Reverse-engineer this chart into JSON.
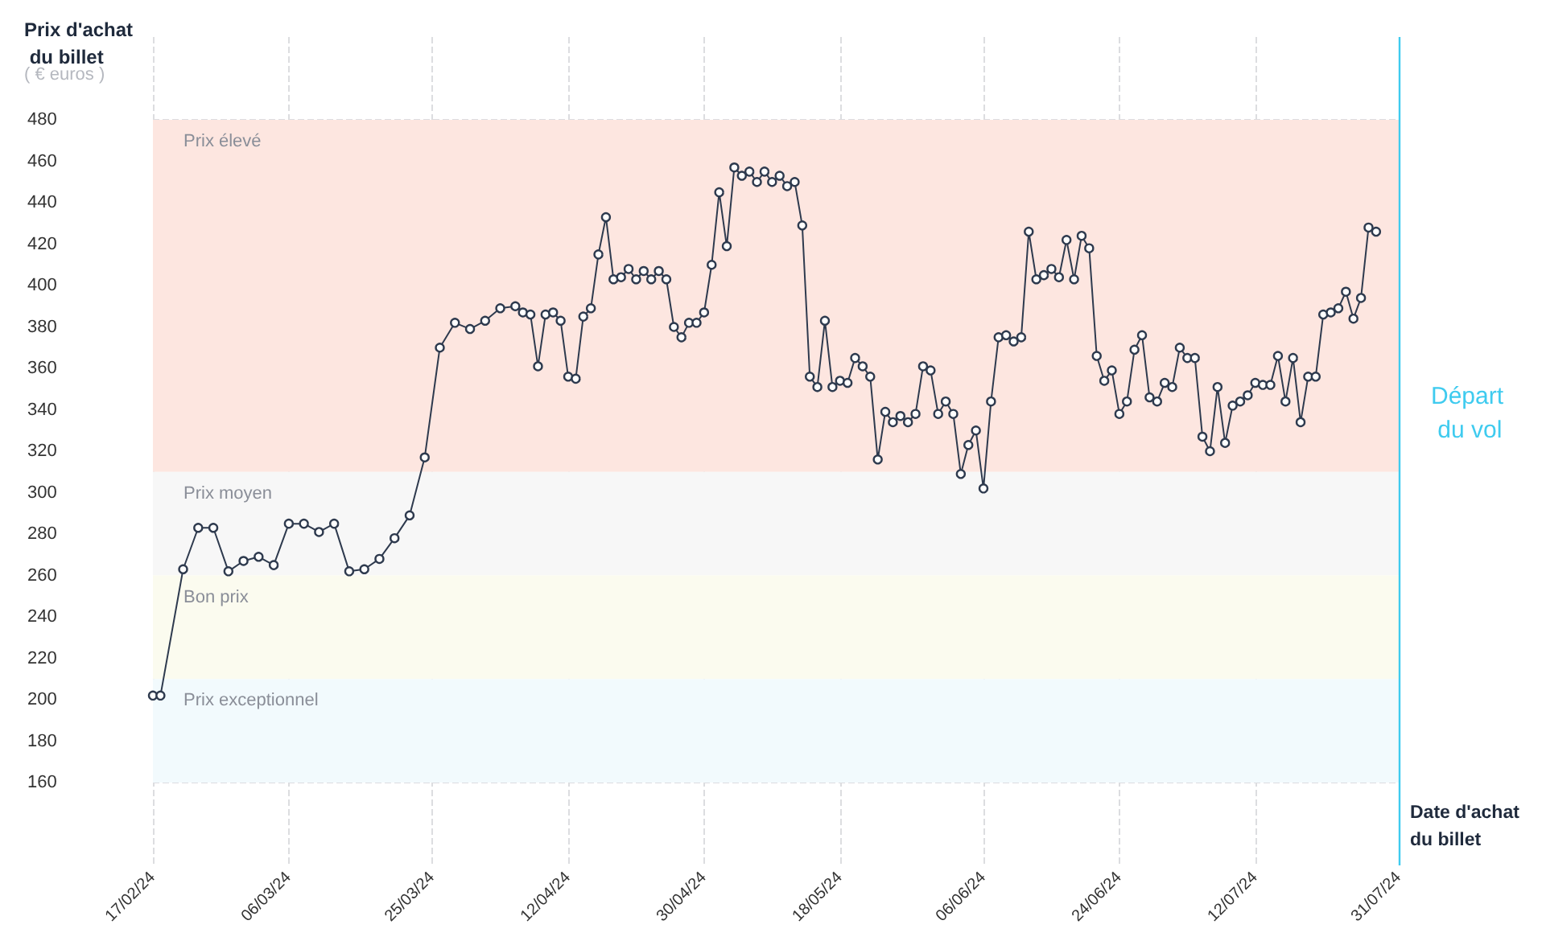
{
  "chart_data": {
    "type": "line",
    "ylabel": "Prix d'achat du billet",
    "xlabel": "Date d'achat du billet",
    "annotations": [
      "( € euros )"
    ],
    "x": [
      "2024-02-17",
      "2024-02-18",
      "2024-02-21",
      "2024-02-23",
      "2024-02-25",
      "2024-02-27",
      "2024-02-29",
      "2024-03-02",
      "2024-03-04",
      "2024-03-06",
      "2024-03-08",
      "2024-03-10",
      "2024-03-12",
      "2024-03-14",
      "2024-03-16",
      "2024-03-18",
      "2024-03-20",
      "2024-03-22",
      "2024-03-24",
      "2024-03-26",
      "2024-03-28",
      "2024-03-30",
      "2024-04-01",
      "2024-04-03",
      "2024-04-05",
      "2024-04-06",
      "2024-04-07",
      "2024-04-08",
      "2024-04-09",
      "2024-04-10",
      "2024-04-11",
      "2024-04-12",
      "2024-04-13",
      "2024-04-14",
      "2024-04-15",
      "2024-04-16",
      "2024-04-17",
      "2024-04-18",
      "2024-04-19",
      "2024-04-20",
      "2024-04-21",
      "2024-04-22",
      "2024-04-23",
      "2024-04-24",
      "2024-04-25",
      "2024-04-26",
      "2024-04-27",
      "2024-04-28",
      "2024-04-29",
      "2024-04-30",
      "2024-05-01",
      "2024-05-02",
      "2024-05-03",
      "2024-05-04",
      "2024-05-05",
      "2024-05-06",
      "2024-05-07",
      "2024-05-08",
      "2024-05-09",
      "2024-05-10",
      "2024-05-11",
      "2024-05-12",
      "2024-05-13",
      "2024-05-14",
      "2024-05-15",
      "2024-05-16",
      "2024-05-17",
      "2024-05-18",
      "2024-05-19",
      "2024-05-20",
      "2024-05-21",
      "2024-05-22",
      "2024-05-23",
      "2024-05-24",
      "2024-05-25",
      "2024-05-26",
      "2024-05-27",
      "2024-05-28",
      "2024-05-29",
      "2024-05-30",
      "2024-05-31",
      "2024-06-01",
      "2024-06-02",
      "2024-06-03",
      "2024-06-04",
      "2024-06-05",
      "2024-06-06",
      "2024-06-07",
      "2024-06-08",
      "2024-06-09",
      "2024-06-10",
      "2024-06-11",
      "2024-06-12",
      "2024-06-13",
      "2024-06-14",
      "2024-06-15",
      "2024-06-16",
      "2024-06-17",
      "2024-06-18",
      "2024-06-19",
      "2024-06-20",
      "2024-06-21",
      "2024-06-22",
      "2024-06-23",
      "2024-06-24",
      "2024-06-25",
      "2024-06-26",
      "2024-06-27",
      "2024-06-28",
      "2024-06-29",
      "2024-06-30",
      "2024-07-01",
      "2024-07-02",
      "2024-07-03",
      "2024-07-04",
      "2024-07-05",
      "2024-07-06",
      "2024-07-07",
      "2024-07-08",
      "2024-07-09",
      "2024-07-10",
      "2024-07-11",
      "2024-07-12",
      "2024-07-13",
      "2024-07-14",
      "2024-07-15",
      "2024-07-16",
      "2024-07-17",
      "2024-07-18",
      "2024-07-19",
      "2024-07-20",
      "2024-07-21",
      "2024-07-22",
      "2024-07-23",
      "2024-07-24",
      "2024-07-25",
      "2024-07-26",
      "2024-07-27",
      "2024-07-28"
    ],
    "series": [
      {
        "color": "#2e3a4e",
        "values": [
          202,
          202,
          263,
          283,
          283,
          262,
          267,
          269,
          265,
          285,
          285,
          281,
          285,
          262,
          263,
          268,
          278,
          289,
          317,
          370,
          382,
          379,
          383,
          389,
          390,
          387,
          386,
          361,
          386,
          387,
          383,
          356,
          355,
          385,
          389,
          415,
          433,
          403,
          404,
          408,
          403,
          407,
          403,
          407,
          403,
          380,
          375,
          382,
          382,
          387,
          410,
          445,
          419,
          457,
          453,
          455,
          450,
          455,
          450,
          453,
          448,
          450,
          429,
          356,
          351,
          383,
          351,
          354,
          353,
          365,
          361,
          356,
          316,
          339,
          334,
          337,
          334,
          338,
          361,
          359,
          338,
          344,
          338,
          309,
          323,
          330,
          302,
          344,
          375,
          376,
          373,
          375,
          426,
          403,
          405,
          408,
          404,
          422,
          403,
          424,
          418,
          366,
          354,
          359,
          338,
          344,
          369,
          376,
          346,
          344,
          353,
          351,
          370,
          365,
          365,
          327,
          320,
          351,
          324,
          342,
          344,
          347,
          353,
          352,
          352,
          366,
          344,
          365,
          334,
          356,
          356,
          386,
          387,
          389,
          397,
          384,
          394,
          428,
          426
        ]
      }
    ],
    "xlim": [
      "2024-02-17",
      "2024-07-31"
    ],
    "xticks": [
      {
        "value": "2024-02-17",
        "label": "17/02/24"
      },
      {
        "value": "2024-03-06",
        "label": "06/03/24"
      },
      {
        "value": "2024-03-25",
        "label": "25/03/24"
      },
      {
        "value": "2024-04-12",
        "label": "12/04/24"
      },
      {
        "value": "2024-04-30",
        "label": "30/04/24"
      },
      {
        "value": "2024-05-18",
        "label": "18/05/24"
      },
      {
        "value": "2024-06-06",
        "label": "06/06/24"
      },
      {
        "value": "2024-06-24",
        "label": "24/06/24"
      },
      {
        "value": "2024-07-12",
        "label": "12/07/24"
      },
      {
        "value": "2024-07-31",
        "label": "31/07/24"
      }
    ],
    "ylim": [
      120,
      520
    ],
    "yticks": [
      160,
      180,
      200,
      220,
      240,
      260,
      280,
      300,
      320,
      340,
      360,
      380,
      400,
      420,
      440,
      460,
      480
    ],
    "bands": [
      {
        "axis": "y",
        "from": 310,
        "to": 480,
        "label": "Prix élevé",
        "color": "#fde6e0"
      },
      {
        "axis": "y",
        "from": 260,
        "to": 310,
        "label": "Prix moyen",
        "color": "#f7f7f7"
      },
      {
        "axis": "y",
        "from": 210,
        "to": 260,
        "label": "Bon prix",
        "color": "#fbfbef"
      },
      {
        "axis": "y",
        "from": 160,
        "to": 210,
        "label": "Prix exceptionnel",
        "color": "#f2fafd"
      }
    ],
    "ref_lines": [
      {
        "axis": "x",
        "value": "2024-07-31",
        "label": "Départ du vol",
        "color": "#3fcbef"
      }
    ],
    "grid": true,
    "marker": "circle",
    "line_style": "solid"
  }
}
